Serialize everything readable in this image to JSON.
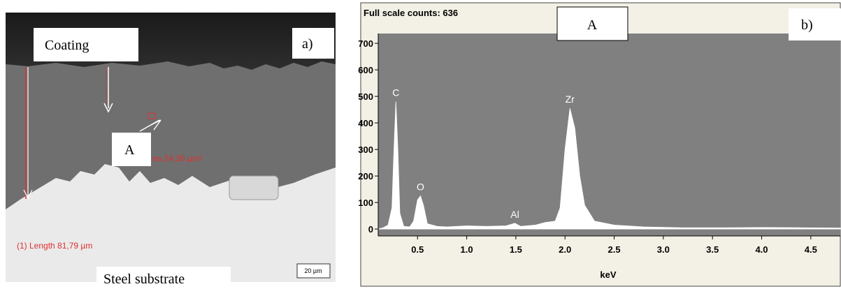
{
  "figure": {
    "panel_a": {
      "label": "a)",
      "coating": "Coating",
      "point": "A",
      "substrate": "Steel substrate",
      "length": "(1) Length 81,79 µm",
      "area": "ea 24,38 µm²",
      "scalebar": "20 µm"
    },
    "panel_b": {
      "label": "b)",
      "point": "A"
    }
  },
  "chart_data": {
    "type": "area",
    "title": "Full scale counts: 636",
    "xlabel": "keV",
    "color": "#ffffff",
    "background": "#808080",
    "x": [
      0.1,
      0.15,
      0.2,
      0.24,
      0.26,
      0.28,
      0.3,
      0.32,
      0.36,
      0.42,
      0.46,
      0.5,
      0.53,
      0.56,
      0.6,
      0.7,
      0.8,
      1.0,
      1.2,
      1.4,
      1.49,
      1.55,
      1.7,
      1.8,
      1.9,
      1.95,
      2.0,
      2.05,
      2.1,
      2.15,
      2.2,
      2.3,
      2.5,
      2.8,
      3.2,
      3.6,
      4.0,
      4.4,
      4.8
    ],
    "values": [
      0,
      5,
      15,
      80,
      300,
      480,
      300,
      60,
      10,
      8,
      30,
      110,
      125,
      90,
      20,
      10,
      8,
      12,
      10,
      12,
      22,
      10,
      15,
      25,
      30,
      80,
      300,
      455,
      380,
      200,
      90,
      30,
      15,
      8,
      5,
      5,
      6,
      5,
      4
    ],
    "annotations": [
      {
        "text": "C",
        "x": 0.28
      },
      {
        "text": "O",
        "x": 0.53
      },
      {
        "text": "Al",
        "x": 1.49
      },
      {
        "text": "Zr",
        "x": 2.05
      }
    ],
    "xlim": [
      0.1,
      4.8
    ],
    "ylim": [
      -26,
      737
    ],
    "xticks": [
      0.5,
      {
        "value": 1,
        "label": "1.0"
      },
      1.5,
      {
        "value": 2,
        "label": "2.0"
      },
      2.5,
      {
        "value": 3,
        "label": "3.0"
      },
      3.5,
      {
        "value": 4,
        "label": "4.0"
      },
      4.5
    ],
    "yticks": [
      0,
      100,
      200,
      300,
      400,
      500,
      600,
      700
    ]
  }
}
